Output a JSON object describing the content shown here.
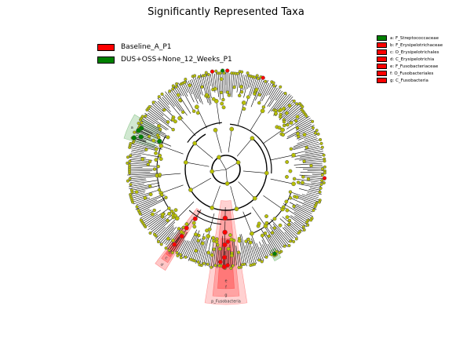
{
  "title": "Significantly Represented Taxa",
  "colors": {
    "baseline": "#ff0000",
    "dus": "#008000",
    "neutral_node": "#b8c000",
    "edge": "#000000"
  },
  "legend_main": [
    {
      "label": "Baseline_A_P1",
      "color": "#ff0000"
    },
    {
      "label": "DUS+OSS+None_12_Weeks_P1",
      "color": "#008000"
    }
  ],
  "legend_side": [
    {
      "label": "a: F_Streptococcaceae",
      "color": "#008000"
    },
    {
      "label": "b: F_Erysipelotrichaceae",
      "color": "#ff0000"
    },
    {
      "label": "c: O_Erysipelotrichales",
      "color": "#ff0000"
    },
    {
      "label": "d: C_Erysipelotrichia",
      "color": "#ff0000"
    },
    {
      "label": "e: F_Fusobacteriaceae",
      "color": "#ff0000"
    },
    {
      "label": "f: O_Fusobacteriales",
      "color": "#ff0000"
    },
    {
      "label": "g: C_Fusobacteria",
      "color": "#ff0000"
    }
  ],
  "clade_labels": {
    "fusobacteria_outer": "p_Fusobacteria",
    "a": "a",
    "b": "b",
    "c": "c",
    "d": "d",
    "e": "e",
    "f": "f",
    "g": "g"
  }
}
